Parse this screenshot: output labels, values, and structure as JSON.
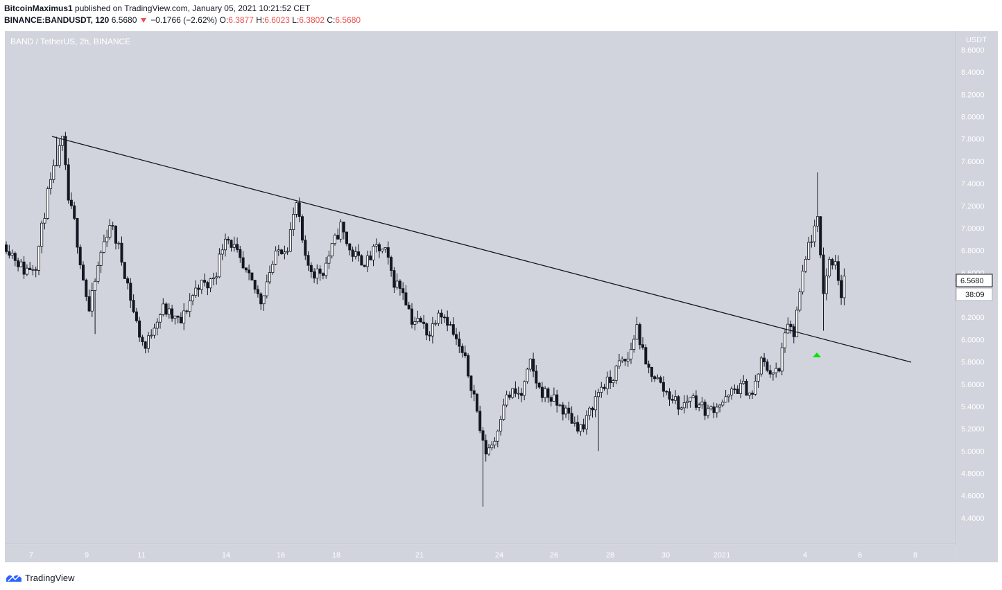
{
  "header": {
    "author": "BitcoinMaximus1",
    "published_text": "published on TradingView.com, January 05, 2021 10:21:52 CET",
    "symbol": "BINANCE:BANDUSDT, 120",
    "last_price": "6.5680",
    "change": "−0.1766 (−2.62%)",
    "o_label": "O:",
    "o_value": "6.3877",
    "h_label": "H:",
    "h_value": "6.6023",
    "l_label": "L:",
    "l_value": "6.3802",
    "c_label": "C:",
    "c_value": "6.5680"
  },
  "chart": {
    "pane_title": "BAND / TetherUS, 2h, BINANCE",
    "currency": "USDT",
    "price_tag": "6.5680",
    "countdown_tag": "38:09"
  },
  "footer": {
    "brand": "TradingView"
  },
  "colors": {
    "pane_bg": "#d1d4dc",
    "candle": "#131722",
    "breakout_marker": "#00e600",
    "accent_red": "#ef5350",
    "brand_blue": "#2962ff"
  },
  "chart_data": {
    "type": "candlestick",
    "ylim": [
      4.3,
      8.6
    ],
    "y_ticks": [
      "8.6000",
      "8.4000",
      "8.2000",
      "8.0000",
      "7.8000",
      "7.6000",
      "7.4000",
      "7.2000",
      "7.0000",
      "6.8000",
      "6.6000",
      "6.4000",
      "6.2000",
      "6.0000",
      "5.8000",
      "5.6000",
      "5.4000",
      "5.2000",
      "5.0000",
      "4.8000",
      "4.6000",
      "4.4000"
    ],
    "x_ticks": [
      "7",
      "9",
      "11",
      "14",
      "16",
      "18",
      "21",
      "24",
      "26",
      "28",
      "30",
      "2021",
      "4",
      "6",
      "8"
    ],
    "price_path": [
      [
        0,
        6.85
      ],
      [
        6,
        6.62
      ],
      [
        10,
        6.68
      ],
      [
        14,
        7.3
      ],
      [
        16,
        7.5
      ],
      [
        19,
        7.78
      ],
      [
        21,
        7.25
      ],
      [
        23,
        7.05
      ],
      [
        26,
        6.55
      ],
      [
        28,
        6.25
      ],
      [
        32,
        6.78
      ],
      [
        35,
        7.05
      ],
      [
        38,
        6.82
      ],
      [
        41,
        6.5
      ],
      [
        43,
        6.25
      ],
      [
        45,
        6.05
      ],
      [
        47,
        5.92
      ],
      [
        50,
        6.15
      ],
      [
        53,
        6.28
      ],
      [
        56,
        6.2
      ],
      [
        59,
        6.15
      ],
      [
        62,
        6.35
      ],
      [
        65,
        6.5
      ],
      [
        68,
        6.48
      ],
      [
        71,
        6.62
      ],
      [
        74,
        6.95
      ],
      [
        77,
        6.82
      ],
      [
        80,
        6.62
      ],
      [
        83,
        6.5
      ],
      [
        86,
        6.35
      ],
      [
        89,
        6.62
      ],
      [
        92,
        6.8
      ],
      [
        95,
        6.85
      ],
      [
        98,
        7.22
      ],
      [
        101,
        6.7
      ],
      [
        104,
        6.6
      ],
      [
        107,
        6.62
      ],
      [
        110,
        6.82
      ],
      [
        113,
        7.02
      ],
      [
        116,
        6.8
      ],
      [
        119,
        6.72
      ],
      [
        122,
        6.7
      ],
      [
        125,
        6.82
      ],
      [
        128,
        6.78
      ],
      [
        131,
        6.52
      ],
      [
        134,
        6.45
      ],
      [
        137,
        6.18
      ],
      [
        140,
        6.15
      ],
      [
        143,
        6.05
      ],
      [
        146,
        6.28
      ],
      [
        149,
        6.18
      ],
      [
        152,
        5.98
      ],
      [
        155,
        5.8
      ],
      [
        158,
        5.5
      ],
      [
        161,
        5.05
      ],
      [
        162,
        5.0
      ],
      [
        165,
        5.1
      ],
      [
        168,
        5.45
      ],
      [
        171,
        5.52
      ],
      [
        174,
        5.5
      ],
      [
        177,
        5.78
      ],
      [
        180,
        5.55
      ],
      [
        183,
        5.5
      ],
      [
        186,
        5.42
      ],
      [
        189,
        5.35
      ],
      [
        192,
        5.25
      ],
      [
        195,
        5.2
      ],
      [
        198,
        5.42
      ],
      [
        201,
        5.58
      ],
      [
        204,
        5.62
      ],
      [
        207,
        5.78
      ],
      [
        210,
        5.82
      ],
      [
        213,
        6.12
      ],
      [
        216,
        5.75
      ],
      [
        219,
        5.68
      ],
      [
        222,
        5.55
      ],
      [
        225,
        5.48
      ],
      [
        228,
        5.38
      ],
      [
        231,
        5.5
      ],
      [
        234,
        5.42
      ],
      [
        237,
        5.35
      ],
      [
        240,
        5.42
      ],
      [
        243,
        5.45
      ],
      [
        246,
        5.55
      ],
      [
        249,
        5.58
      ],
      [
        252,
        5.5
      ],
      [
        255,
        5.8
      ],
      [
        258,
        5.72
      ],
      [
        261,
        5.7
      ],
      [
        263,
        6.1
      ],
      [
        266,
        6.05
      ],
      [
        268,
        6.42
      ],
      [
        271,
        6.85
      ],
      [
        274,
        7.05
      ],
      [
        276,
        6.45
      ],
      [
        278,
        6.7
      ],
      [
        280,
        6.72
      ],
      [
        282,
        6.4
      ],
      [
        283,
        6.57
      ]
    ]
  }
}
